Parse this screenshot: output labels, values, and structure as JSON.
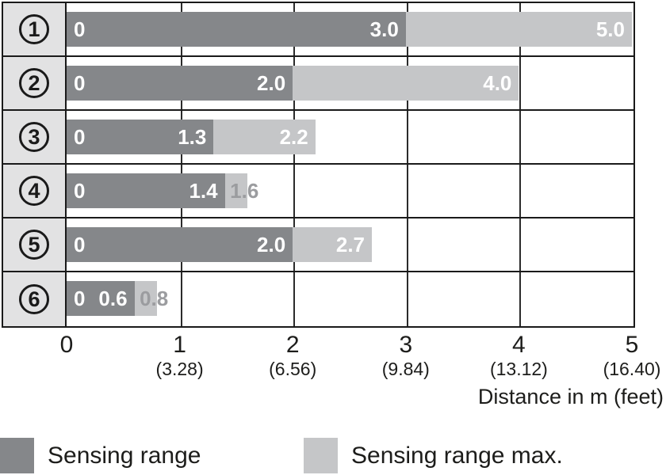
{
  "colors": {
    "bar_dark": "#85878A",
    "bar_light": "#C5C6C8",
    "label_column_bg": "#E2E2E3",
    "border": "#1A1A1A",
    "gridline": "#2B2B2B",
    "text": "#1D1D1B",
    "outside_label": "#9B9C9F",
    "bar_label": "#FFFFFF"
  },
  "chart_data": {
    "type": "bar",
    "orientation": "horizontal",
    "title": "",
    "xlabel": "Distance in m (feet)",
    "ylabel": "",
    "xlim": [
      0,
      5
    ],
    "grid": "vertical gridlines at 1,2,3,4,5 m; black row separators",
    "legend_position": "bottom",
    "categories": [
      "1",
      "2",
      "3",
      "4",
      "5",
      "6"
    ],
    "series": [
      {
        "name": "Sensing range",
        "values": [
          3.0,
          2.0,
          1.3,
          1.4,
          2.0,
          0.6
        ]
      },
      {
        "name": "Sensing range max.",
        "values": [
          5.0,
          4.0,
          2.2,
          1.6,
          2.7,
          0.8
        ]
      }
    ],
    "rows": [
      {
        "category": "1",
        "zero_label": "0",
        "sensing_range": 3.0,
        "range_label": "3.0",
        "sensing_range_max": 5.0,
        "max_label": "5.0",
        "max_label_placement": "inside"
      },
      {
        "category": "2",
        "zero_label": "0",
        "sensing_range": 2.0,
        "range_label": "2.0",
        "sensing_range_max": 4.0,
        "max_label": "4.0",
        "max_label_placement": "inside"
      },
      {
        "category": "3",
        "zero_label": "0",
        "sensing_range": 1.3,
        "range_label": "1.3",
        "sensing_range_max": 2.2,
        "max_label": "2.2",
        "max_label_placement": "inside"
      },
      {
        "category": "4",
        "zero_label": "0",
        "sensing_range": 1.4,
        "range_label": "1.4",
        "sensing_range_max": 1.6,
        "max_label": "1.6",
        "max_label_placement": "outside"
      },
      {
        "category": "5",
        "zero_label": "0",
        "sensing_range": 2.0,
        "range_label": "2.0",
        "sensing_range_max": 2.7,
        "max_label": "2.7",
        "max_label_placement": "inside"
      },
      {
        "category": "6",
        "zero_label": "0",
        "sensing_range": 0.6,
        "range_label": "0.6",
        "sensing_range_max": 0.8,
        "max_label": "0.8",
        "max_label_placement": "outside"
      }
    ],
    "x_ticks": [
      {
        "m": "0",
        "feet": ""
      },
      {
        "m": "1",
        "feet": "(3.28)"
      },
      {
        "m": "2",
        "feet": "(6.56)"
      },
      {
        "m": "3",
        "feet": "(9.84)"
      },
      {
        "m": "4",
        "feet": "(13.12)"
      },
      {
        "m": "5",
        "feet": "(16.40)"
      }
    ],
    "legend": [
      {
        "label": "Sensing range",
        "swatch": "dark"
      },
      {
        "label": "Sensing range max.",
        "swatch": "light"
      }
    ]
  }
}
